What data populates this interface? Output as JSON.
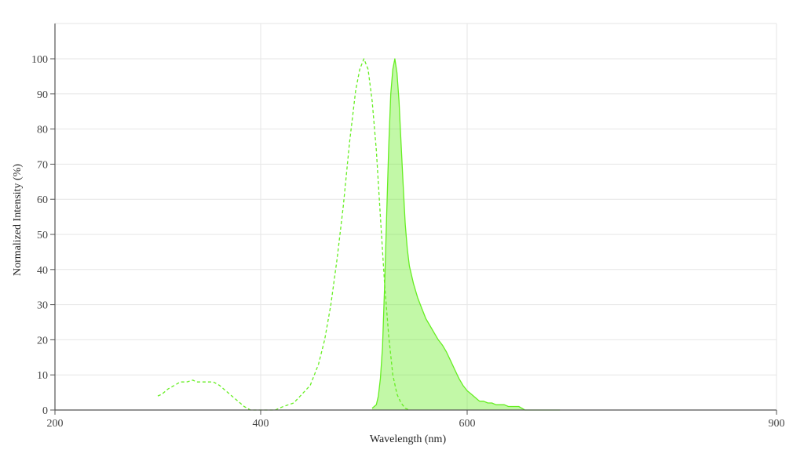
{
  "chart_data": {
    "type": "line",
    "title": "",
    "xlabel": "Wavelength (nm)",
    "ylabel": "Normalized Intensity (%)",
    "xlim": [
      200,
      900
    ],
    "ylim": [
      0,
      110
    ],
    "x_ticks": [
      200,
      400,
      600,
      900
    ],
    "y_ticks": [
      0,
      10,
      20,
      30,
      40,
      50,
      60,
      70,
      80,
      90,
      100
    ],
    "grid": true,
    "legend": "none",
    "series": [
      {
        "style": "dashed",
        "color": "#66ee22",
        "fill": false,
        "x": [
          300,
          304,
          310,
          316,
          322,
          328,
          334,
          338,
          342,
          348,
          354,
          360,
          366,
          372,
          378,
          384,
          390,
          396,
          400,
          406,
          414,
          422,
          432,
          440,
          448,
          456,
          462,
          468,
          474,
          480,
          486,
          492,
          496,
          500,
          504,
          508,
          512,
          516,
          520,
          524,
          528,
          532,
          536,
          540,
          544
        ],
        "y": [
          4,
          4.5,
          6,
          7,
          8,
          8,
          8.5,
          8,
          8,
          8,
          8,
          7,
          5.5,
          4,
          2.5,
          1,
          0,
          0,
          0,
          0,
          0,
          1,
          2,
          4.5,
          7,
          13,
          20,
          30,
          43,
          58,
          76,
          91,
          97,
          100,
          97,
          88,
          74,
          55,
          36,
          21,
          10,
          4.5,
          2,
          0.5,
          0
        ]
      },
      {
        "style": "solid",
        "color": "#66ee22",
        "fill": true,
        "fill_color": "#66ee22",
        "x": [
          508,
          512,
          514,
          516,
          518,
          520,
          522,
          524,
          526,
          528,
          530,
          532,
          534,
          536,
          538,
          540,
          542,
          544,
          548,
          552,
          556,
          560,
          564,
          568,
          572,
          576,
          580,
          584,
          588,
          592,
          596,
          600,
          604,
          608,
          612,
          616,
          620,
          624,
          628,
          632,
          636,
          640,
          644,
          650,
          656,
          662,
          672,
          690
        ],
        "y": [
          0.5,
          1.5,
          4,
          9,
          18,
          35,
          55,
          75,
          90,
          97,
          100,
          96,
          88,
          76,
          64,
          53,
          46,
          41,
          36,
          32,
          29,
          26,
          24,
          22,
          20,
          18.5,
          16.5,
          14,
          11.5,
          9,
          7,
          5.5,
          4.5,
          3.5,
          2.5,
          2.5,
          2,
          2,
          1.5,
          1.5,
          1.5,
          1,
          1,
          1,
          0,
          0,
          0,
          0
        ]
      }
    ]
  }
}
